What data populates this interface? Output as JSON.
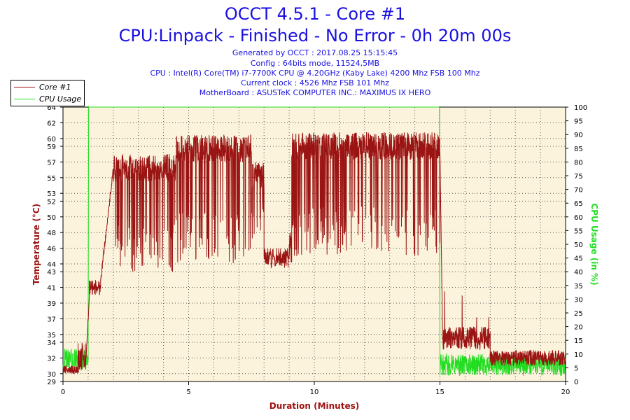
{
  "header": {
    "title": "OCCT 4.5.1 - Core #1",
    "subtitle": "CPU:Linpack - Finished - No Error - 0h 20m 00s",
    "info": [
      "Generated by OCCT : 2017.08.25 15:15:45",
      "Config : 64bits mode, 11524,5MB",
      "CPU : Intel(R) Core(TM) i7-7700K CPU @ 4.20GHz (Kaby Lake) 4200 Mhz FSB 100 Mhz",
      "Current clock : 4526 Mhz FSB 101 Mhz",
      "MotherBoard : ASUSTeK COMPUTER INC.: MAXIMUS IX HERO"
    ]
  },
  "colors": {
    "title": "#1a10e0",
    "temperature": "#9b1414",
    "cpu_usage": "#22dd22",
    "plot_bg": "#fcf3dc",
    "grid": "#555555",
    "xlabel": "#a01010"
  },
  "chart_data": {
    "type": "line",
    "xlabel": "Duration (Minutes)",
    "ylabel_left": "Temperature (°C)",
    "ylabel_right": "CPU Usage (in %)",
    "xlim": [
      0,
      20
    ],
    "ylim_left": [
      29,
      64
    ],
    "ylim_right": [
      0,
      100
    ],
    "x_ticks": [
      0,
      5,
      10,
      15,
      20
    ],
    "y_left_ticks": [
      29,
      30,
      32,
      34,
      35,
      37,
      39,
      41,
      43,
      44,
      46,
      48,
      50,
      52,
      53,
      55,
      57,
      59,
      60,
      62,
      64
    ],
    "y_right_ticks": [
      0,
      5,
      10,
      15,
      20,
      25,
      30,
      35,
      40,
      45,
      50,
      55,
      60,
      65,
      70,
      75,
      80,
      85,
      90,
      95,
      100
    ],
    "grid": true,
    "legend_position": "top-left",
    "series": [
      {
        "name": "Core #1",
        "axis": "left",
        "segments": [
          {
            "x0": 0.0,
            "x1": 0.6,
            "mode": "idle",
            "lo": 30,
            "hi": 31
          },
          {
            "x0": 0.6,
            "x1": 0.9,
            "mode": "idle",
            "lo": 30,
            "hi": 34
          },
          {
            "x0": 0.9,
            "x1": 1.05,
            "mode": "ramp",
            "from": 31,
            "to": 40
          },
          {
            "x0": 1.05,
            "x1": 1.5,
            "mode": "noise",
            "lo": 40,
            "hi": 42
          },
          {
            "x0": 1.5,
            "x1": 2.0,
            "mode": "ramp",
            "from": 42,
            "to": 56
          },
          {
            "x0": 2.0,
            "x1": 4.5,
            "mode": "spiky",
            "lo": 43,
            "hi": 58
          },
          {
            "x0": 4.5,
            "x1": 7.5,
            "mode": "spiky",
            "lo": 44,
            "hi": 60.5
          },
          {
            "x0": 7.5,
            "x1": 8.0,
            "mode": "spiky",
            "lo": 47,
            "hi": 57
          },
          {
            "x0": 8.0,
            "x1": 9.0,
            "mode": "noise",
            "lo": 43.5,
            "hi": 46
          },
          {
            "x0": 9.0,
            "x1": 9.1,
            "mode": "noise",
            "lo": 44,
            "hi": 48
          },
          {
            "x0": 9.1,
            "x1": 15.0,
            "mode": "spiky",
            "lo": 45,
            "hi": 60.8
          },
          {
            "x0": 15.0,
            "x1": 15.1,
            "mode": "ramp",
            "from": 58,
            "to": 36
          },
          {
            "x0": 15.1,
            "x1": 17.0,
            "mode": "decay",
            "lo": 33,
            "hi": 36
          },
          {
            "x0": 17.0,
            "x1": 20.0,
            "mode": "idle",
            "lo": 31,
            "hi": 33
          }
        ]
      },
      {
        "name": "CPU Usage",
        "axis": "right",
        "segments": [
          {
            "x0": 0.0,
            "x1": 1.0,
            "mode": "idle",
            "lo": 4,
            "hi": 12
          },
          {
            "x0": 1.0,
            "x1": 1.02,
            "mode": "ramp",
            "from": 8,
            "to": 100
          },
          {
            "x0": 1.02,
            "x1": 14.98,
            "mode": "flat",
            "value": 100
          },
          {
            "x0": 14.98,
            "x1": 15.0,
            "mode": "ramp",
            "from": 100,
            "to": 5
          },
          {
            "x0": 15.0,
            "x1": 20.0,
            "mode": "idle",
            "lo": 2,
            "hi": 10
          }
        ]
      }
    ]
  }
}
